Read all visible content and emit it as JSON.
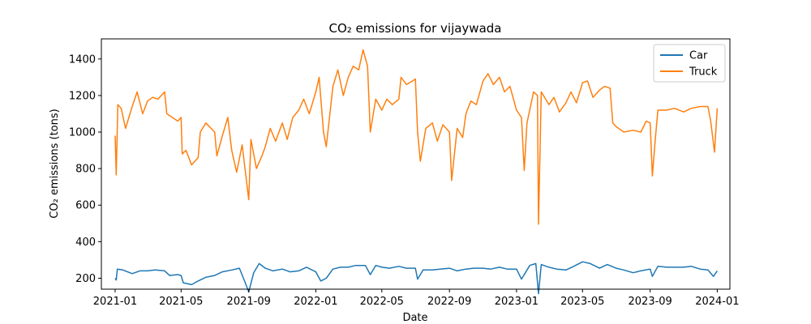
{
  "chart_data": {
    "type": "line",
    "title": "CO₂ emissions for vijaywada",
    "xlabel": "Date",
    "ylabel": "CO₂ emissions (tons)",
    "xlim": [
      "2020-12-07",
      "2024-01-24"
    ],
    "ylim": [
      140,
      1510
    ],
    "x_ticks": [
      "2021-01",
      "2021-05",
      "2021-09",
      "2022-01",
      "2022-05",
      "2022-09",
      "2023-01",
      "2023-05",
      "2023-09",
      "2024-01"
    ],
    "y_ticks": [
      200,
      400,
      600,
      800,
      1000,
      1200,
      1400
    ],
    "grid": false,
    "legend_position": "top-right",
    "series": [
      {
        "name": "Car",
        "color": "#1f77b4",
        "points": [
          [
            "2021-01-01",
            200
          ],
          [
            "2021-01-03",
            190
          ],
          [
            "2021-01-05",
            250
          ],
          [
            "2021-01-15",
            245
          ],
          [
            "2021-02-01",
            225
          ],
          [
            "2021-02-15",
            240
          ],
          [
            "2021-03-01",
            240
          ],
          [
            "2021-03-15",
            245
          ],
          [
            "2021-04-01",
            240
          ],
          [
            "2021-04-10",
            215
          ],
          [
            "2021-04-25",
            220
          ],
          [
            "2021-05-01",
            215
          ],
          [
            "2021-05-05",
            175
          ],
          [
            "2021-05-20",
            165
          ],
          [
            "2021-06-01",
            185
          ],
          [
            "2021-06-15",
            205
          ],
          [
            "2021-07-01",
            215
          ],
          [
            "2021-07-15",
            235
          ],
          [
            "2021-08-01",
            245
          ],
          [
            "2021-08-15",
            255
          ],
          [
            "2021-08-25",
            180
          ],
          [
            "2021-09-01",
            125
          ],
          [
            "2021-09-10",
            230
          ],
          [
            "2021-09-20",
            280
          ],
          [
            "2021-10-01",
            255
          ],
          [
            "2021-10-15",
            240
          ],
          [
            "2021-11-01",
            250
          ],
          [
            "2021-11-15",
            235
          ],
          [
            "2021-12-01",
            240
          ],
          [
            "2021-12-15",
            260
          ],
          [
            "2022-01-01",
            235
          ],
          [
            "2022-01-10",
            185
          ],
          [
            "2022-01-20",
            200
          ],
          [
            "2022-02-01",
            250
          ],
          [
            "2022-02-15",
            260
          ],
          [
            "2022-03-01",
            260
          ],
          [
            "2022-03-15",
            270
          ],
          [
            "2022-04-01",
            270
          ],
          [
            "2022-04-10",
            220
          ],
          [
            "2022-04-20",
            270
          ],
          [
            "2022-05-01",
            260
          ],
          [
            "2022-05-15",
            255
          ],
          [
            "2022-06-01",
            265
          ],
          [
            "2022-06-15",
            255
          ],
          [
            "2022-07-01",
            255
          ],
          [
            "2022-07-05",
            195
          ],
          [
            "2022-07-15",
            245
          ],
          [
            "2022-08-01",
            245
          ],
          [
            "2022-08-15",
            250
          ],
          [
            "2022-09-01",
            255
          ],
          [
            "2022-09-15",
            240
          ],
          [
            "2022-10-01",
            250
          ],
          [
            "2022-10-15",
            255
          ],
          [
            "2022-11-01",
            255
          ],
          [
            "2022-11-15",
            250
          ],
          [
            "2022-12-01",
            260
          ],
          [
            "2022-12-15",
            250
          ],
          [
            "2023-01-01",
            250
          ],
          [
            "2023-01-10",
            195
          ],
          [
            "2023-01-25",
            270
          ],
          [
            "2023-02-05",
            280
          ],
          [
            "2023-02-10",
            115
          ],
          [
            "2023-02-15",
            275
          ],
          [
            "2023-03-01",
            260
          ],
          [
            "2023-03-15",
            250
          ],
          [
            "2023-04-01",
            245
          ],
          [
            "2023-04-15",
            265
          ],
          [
            "2023-05-01",
            290
          ],
          [
            "2023-05-15",
            280
          ],
          [
            "2023-06-01",
            255
          ],
          [
            "2023-06-15",
            275
          ],
          [
            "2023-07-01",
            255
          ],
          [
            "2023-07-15",
            245
          ],
          [
            "2023-08-01",
            230
          ],
          [
            "2023-08-15",
            240
          ],
          [
            "2023-09-01",
            250
          ],
          [
            "2023-09-05",
            210
          ],
          [
            "2023-09-15",
            265
          ],
          [
            "2023-10-01",
            260
          ],
          [
            "2023-10-15",
            260
          ],
          [
            "2023-11-01",
            260
          ],
          [
            "2023-11-15",
            265
          ],
          [
            "2023-12-01",
            250
          ],
          [
            "2023-12-15",
            245
          ],
          [
            "2023-12-25",
            210
          ],
          [
            "2024-01-01",
            240
          ]
        ]
      },
      {
        "name": "Truck",
        "color": "#ff7f0e",
        "points": [
          [
            "2021-01-01",
            980
          ],
          [
            "2021-01-03",
            765
          ],
          [
            "2021-01-06",
            1150
          ],
          [
            "2021-01-12",
            1130
          ],
          [
            "2021-01-20",
            1020
          ],
          [
            "2021-02-01",
            1140
          ],
          [
            "2021-02-10",
            1220
          ],
          [
            "2021-02-20",
            1100
          ],
          [
            "2021-03-01",
            1170
          ],
          [
            "2021-03-10",
            1190
          ],
          [
            "2021-03-20",
            1180
          ],
          [
            "2021-04-01",
            1220
          ],
          [
            "2021-04-05",
            1100
          ],
          [
            "2021-04-15",
            1080
          ],
          [
            "2021-04-25",
            1060
          ],
          [
            "2021-05-01",
            1080
          ],
          [
            "2021-05-03",
            880
          ],
          [
            "2021-05-10",
            900
          ],
          [
            "2021-05-20",
            820
          ],
          [
            "2021-06-01",
            860
          ],
          [
            "2021-06-05",
            1000
          ],
          [
            "2021-06-15",
            1050
          ],
          [
            "2021-07-01",
            1000
          ],
          [
            "2021-07-05",
            870
          ],
          [
            "2021-07-15",
            980
          ],
          [
            "2021-07-25",
            1080
          ],
          [
            "2021-08-01",
            900
          ],
          [
            "2021-08-10",
            780
          ],
          [
            "2021-08-20",
            930
          ],
          [
            "2021-09-01",
            630
          ],
          [
            "2021-09-05",
            960
          ],
          [
            "2021-09-15",
            800
          ],
          [
            "2021-09-25",
            870
          ],
          [
            "2021-10-01",
            920
          ],
          [
            "2021-10-10",
            1020
          ],
          [
            "2021-10-20",
            950
          ],
          [
            "2021-11-01",
            1050
          ],
          [
            "2021-11-10",
            960
          ],
          [
            "2021-11-20",
            1080
          ],
          [
            "2021-12-01",
            1120
          ],
          [
            "2021-12-10",
            1180
          ],
          [
            "2021-12-20",
            1100
          ],
          [
            "2022-01-01",
            1220
          ],
          [
            "2022-01-07",
            1300
          ],
          [
            "2022-01-15",
            1000
          ],
          [
            "2022-01-20",
            920
          ],
          [
            "2022-02-01",
            1250
          ],
          [
            "2022-02-10",
            1340
          ],
          [
            "2022-02-20",
            1200
          ],
          [
            "2022-03-01",
            1300
          ],
          [
            "2022-03-10",
            1360
          ],
          [
            "2022-03-20",
            1340
          ],
          [
            "2022-03-28",
            1450
          ],
          [
            "2022-04-05",
            1360
          ],
          [
            "2022-04-10",
            1000
          ],
          [
            "2022-04-20",
            1180
          ],
          [
            "2022-05-01",
            1120
          ],
          [
            "2022-05-10",
            1180
          ],
          [
            "2022-05-20",
            1150
          ],
          [
            "2022-06-01",
            1180
          ],
          [
            "2022-06-05",
            1300
          ],
          [
            "2022-06-15",
            1260
          ],
          [
            "2022-07-01",
            1290
          ],
          [
            "2022-07-05",
            1000
          ],
          [
            "2022-07-10",
            840
          ],
          [
            "2022-07-20",
            1020
          ],
          [
            "2022-08-01",
            1050
          ],
          [
            "2022-08-10",
            950
          ],
          [
            "2022-08-20",
            1040
          ],
          [
            "2022-09-01",
            1000
          ],
          [
            "2022-09-05",
            735
          ],
          [
            "2022-09-15",
            1020
          ],
          [
            "2022-09-25",
            970
          ],
          [
            "2022-10-01",
            1100
          ],
          [
            "2022-10-10",
            1170
          ],
          [
            "2022-10-20",
            1150
          ],
          [
            "2022-11-01",
            1280
          ],
          [
            "2022-11-10",
            1320
          ],
          [
            "2022-11-20",
            1260
          ],
          [
            "2022-12-01",
            1300
          ],
          [
            "2022-12-10",
            1220
          ],
          [
            "2022-12-20",
            1250
          ],
          [
            "2023-01-01",
            1120
          ],
          [
            "2023-01-10",
            1080
          ],
          [
            "2023-01-15",
            790
          ],
          [
            "2023-01-20",
            1050
          ],
          [
            "2023-02-01",
            1220
          ],
          [
            "2023-02-08",
            1200
          ],
          [
            "2023-02-10",
            495
          ],
          [
            "2023-02-15",
            1220
          ],
          [
            "2023-03-01",
            1150
          ],
          [
            "2023-03-10",
            1190
          ],
          [
            "2023-03-20",
            1110
          ],
          [
            "2023-04-01",
            1160
          ],
          [
            "2023-04-10",
            1220
          ],
          [
            "2023-04-20",
            1160
          ],
          [
            "2023-05-01",
            1270
          ],
          [
            "2023-05-10",
            1280
          ],
          [
            "2023-05-20",
            1190
          ],
          [
            "2023-06-01",
            1230
          ],
          [
            "2023-06-10",
            1250
          ],
          [
            "2023-06-20",
            1240
          ],
          [
            "2023-06-25",
            1050
          ],
          [
            "2023-07-01",
            1030
          ],
          [
            "2023-07-15",
            1000
          ],
          [
            "2023-08-01",
            1010
          ],
          [
            "2023-08-15",
            1000
          ],
          [
            "2023-08-25",
            1060
          ],
          [
            "2023-09-01",
            1050
          ],
          [
            "2023-09-05",
            760
          ],
          [
            "2023-09-10",
            950
          ],
          [
            "2023-09-15",
            1120
          ],
          [
            "2023-10-01",
            1120
          ],
          [
            "2023-10-15",
            1130
          ],
          [
            "2023-11-01",
            1110
          ],
          [
            "2023-11-15",
            1130
          ],
          [
            "2023-12-01",
            1140
          ],
          [
            "2023-12-15",
            1140
          ],
          [
            "2023-12-20",
            1060
          ],
          [
            "2023-12-27",
            890
          ],
          [
            "2024-01-01",
            1130
          ]
        ]
      }
    ]
  }
}
